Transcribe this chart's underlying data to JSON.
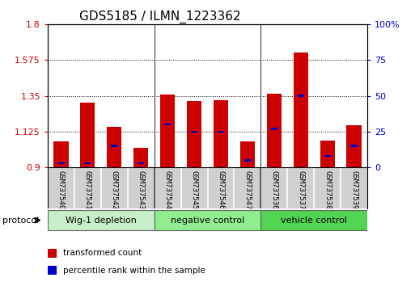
{
  "title": "GDS5185 / ILMN_1223362",
  "samples": [
    "GSM737540",
    "GSM737541",
    "GSM737542",
    "GSM737543",
    "GSM737544",
    "GSM737545",
    "GSM737546",
    "GSM737547",
    "GSM737536",
    "GSM737537",
    "GSM737538",
    "GSM737539"
  ],
  "transformed_count": [
    1.065,
    1.305,
    1.155,
    1.025,
    1.36,
    1.315,
    1.32,
    1.065,
    1.365,
    1.625,
    1.07,
    1.165
  ],
  "percentile_rank": [
    3,
    3,
    15,
    3,
    30,
    25,
    25,
    5,
    27,
    50,
    8,
    15
  ],
  "baseline": 0.9,
  "ylim_left": [
    0.9,
    1.8
  ],
  "ylim_right": [
    0,
    100
  ],
  "yticks_left": [
    0.9,
    1.125,
    1.35,
    1.575,
    1.8
  ],
  "yticks_right": [
    0,
    25,
    50,
    75,
    100
  ],
  "ytick_labels_left": [
    "0.9",
    "1.125",
    "1.35",
    "1.575",
    "1.8"
  ],
  "ytick_labels_right": [
    "0",
    "25",
    "50",
    "75",
    "100%"
  ],
  "groups": [
    {
      "label": "Wig-1 depletion",
      "indices": [
        0,
        1,
        2,
        3
      ],
      "color": "#c8f0c8"
    },
    {
      "label": "negative control",
      "indices": [
        4,
        5,
        6,
        7
      ],
      "color": "#90ee90"
    },
    {
      "label": "vehicle control",
      "indices": [
        8,
        9,
        10,
        11
      ],
      "color": "#52d452"
    }
  ],
  "bar_color": "#cc0000",
  "percentile_color": "#0000cc",
  "bar_width": 0.55,
  "percentile_bar_width": 0.25,
  "grid_color": "#000000",
  "protocol_label": "protocol",
  "legend_items": [
    {
      "label": "transformed count",
      "color": "#cc0000"
    },
    {
      "label": "percentile rank within the sample",
      "color": "#0000cc"
    }
  ],
  "plot_bg_color": "#ffffff",
  "cell_bg_color": "#d0d0d0",
  "cell_border_color": "#ffffff",
  "separator_color": "#404040",
  "separator_indices": [
    3.5,
    7.5
  ],
  "title_fontsize": 11,
  "tick_fontsize": 8,
  "sample_fontsize": 6.5,
  "group_fontsize": 8,
  "legend_fontsize": 7.5,
  "axis_label_color_left": "#cc0000",
  "axis_label_color_right": "#0000cc"
}
